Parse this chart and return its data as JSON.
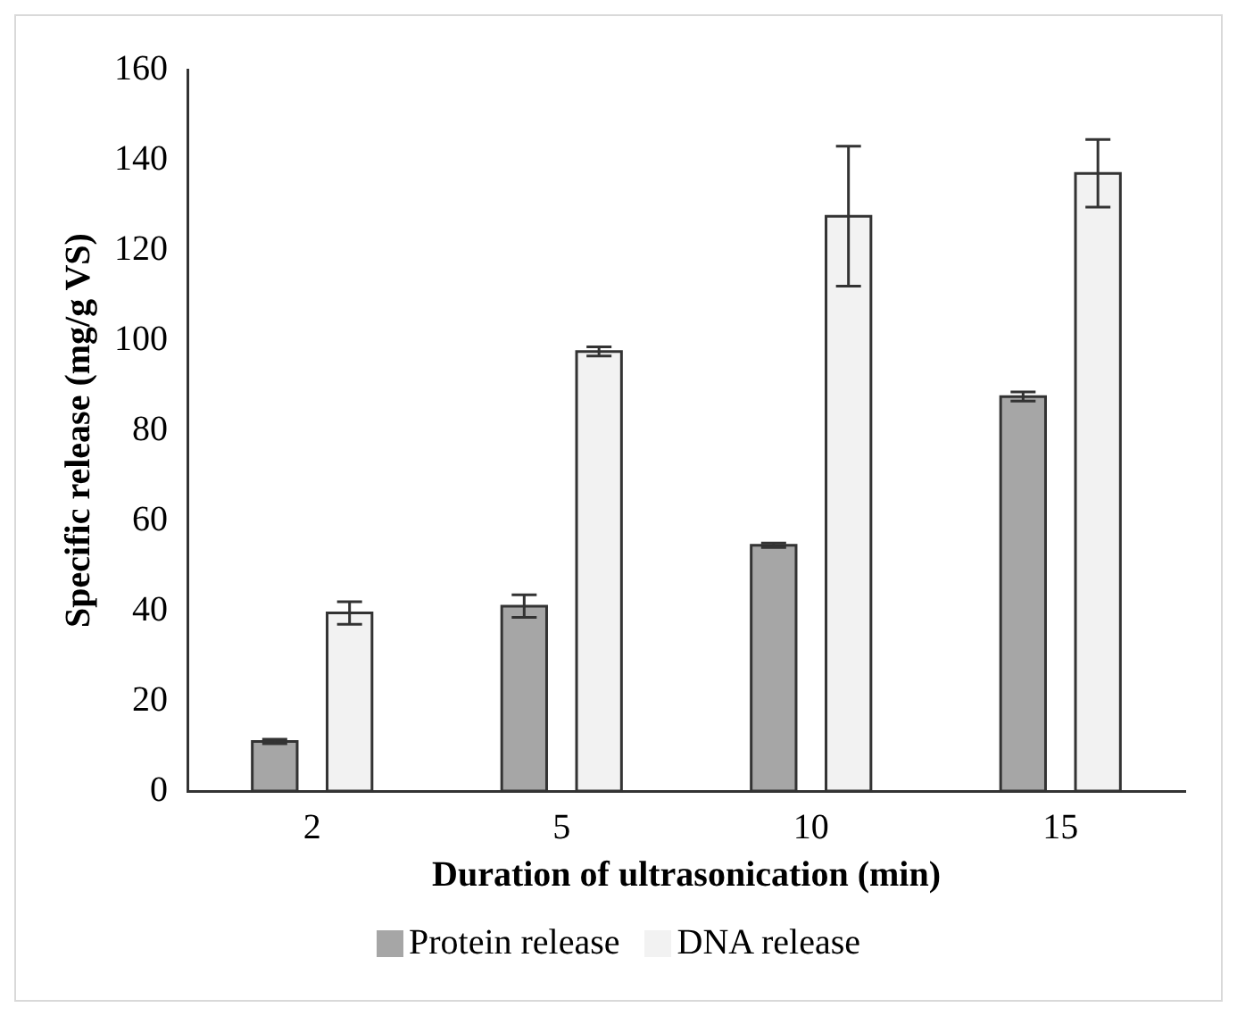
{
  "chart_data": {
    "type": "bar",
    "xlabel": "Duration of ultrasonication (min)",
    "ylabel": "Specific release (mg/g VS)",
    "categories": [
      "2",
      "5",
      "10",
      "15"
    ],
    "series": [
      {
        "name": "Protein release",
        "color": "#a6a6a6",
        "values": [
          11,
          41,
          54.5,
          87.5
        ],
        "errors": [
          0.5,
          2.5,
          0.5,
          1
        ]
      },
      {
        "name": "DNA release",
        "color": "#f2f2f2",
        "values": [
          39.5,
          97.5,
          127.5,
          137
        ],
        "errors": [
          2.5,
          1,
          15.5,
          7.5
        ]
      }
    ],
    "ylim": [
      0,
      160
    ],
    "yticks": [
      0,
      20,
      40,
      60,
      80,
      100,
      120,
      140,
      160
    ],
    "grid": false,
    "legend": "bottom"
  }
}
